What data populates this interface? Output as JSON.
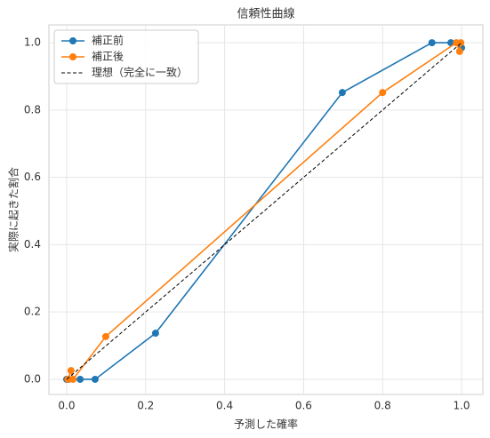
{
  "chart_data": {
    "type": "line",
    "title": "信頼性曲線",
    "xlabel": "予測した確率",
    "ylabel": "実際に起きた割合",
    "xlim": [
      -0.045,
      1.054
    ],
    "ylim": [
      -0.045,
      1.053
    ],
    "xticks": [
      {
        "value": 0,
        "label": "0.0"
      },
      0.2,
      0.4,
      0.6,
      0.8,
      {
        "value": 1,
        "label": "1.0"
      }
    ],
    "yticks": [
      {
        "value": 0,
        "label": "0.0"
      },
      0.2,
      0.4,
      0.6,
      0.8,
      {
        "value": 1,
        "label": "1.0"
      }
    ],
    "grid": true,
    "legend": "upper left",
    "series": [
      {
        "name": "補正前",
        "color": "#1f77b4",
        "marker": "o",
        "x": [
          0.0,
          0.005,
          0.034,
          0.072,
          0.225,
          0.698,
          0.925,
          0.973,
          1.0
        ],
        "values": [
          0.0,
          0.0,
          0.0,
          0.0,
          0.137,
          0.852,
          1.0,
          1.0,
          0.985
        ]
      },
      {
        "name": "補正後",
        "color": "#ff7f0e",
        "marker": "o",
        "x": [
          0.003,
          0.011,
          0.016,
          0.099,
          0.8,
          0.987,
          0.995,
          0.998
        ],
        "values": [
          0.0,
          0.026,
          0.0,
          0.127,
          0.852,
          1.0,
          0.974,
          1.0
        ]
      },
      {
        "name": "理想（完全に一致）",
        "color": "#000000",
        "linestyle": "dashed",
        "x": [
          0,
          1
        ],
        "values": [
          0,
          1
        ]
      }
    ]
  }
}
